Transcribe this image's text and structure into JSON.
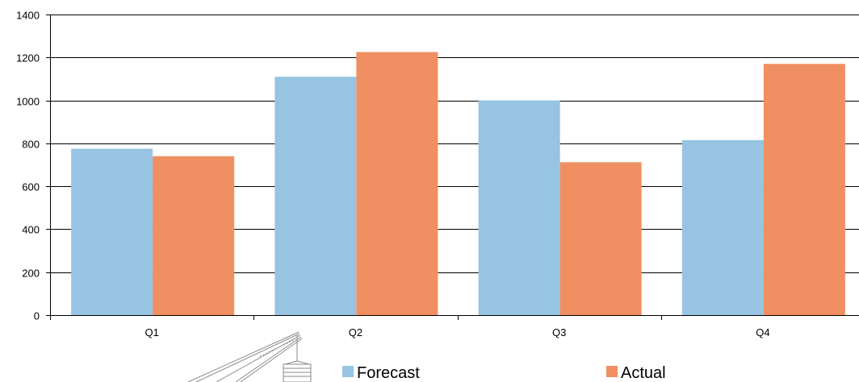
{
  "chart_data": {
    "type": "bar",
    "categories": [
      "Q1",
      "Q2",
      "Q3",
      "Q4"
    ],
    "series": [
      {
        "name": "Forecast",
        "color": "#96c4e2",
        "values": [
          775,
          1110,
          1000,
          815
        ]
      },
      {
        "name": "Actual",
        "color": "#f08f62",
        "values": [
          740,
          1225,
          712,
          1170
        ]
      }
    ],
    "ylim": [
      0,
      1400
    ],
    "yticks": [
      0,
      200,
      400,
      600,
      800,
      1000,
      1200,
      1400
    ],
    "grid": true,
    "legend_position": "bottom",
    "title": "",
    "xlabel": "",
    "ylabel": ""
  },
  "decoration": {
    "icon": "crane-icon"
  }
}
